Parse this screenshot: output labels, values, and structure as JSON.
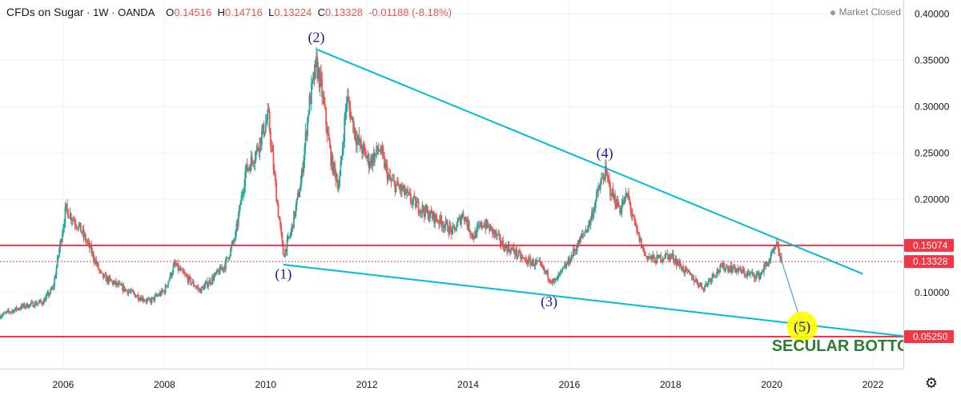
{
  "header": {
    "symbol": "CFDs on Sugar",
    "interval": "1W",
    "exchange": "OANDA",
    "open_label": "O",
    "open": "0.14516",
    "high_label": "H",
    "high": "0.14716",
    "low_label": "L",
    "low": "0.13224",
    "close_label": "C",
    "close": "0.13328",
    "change": "-0.01188 (-8.18%)"
  },
  "market_status": "Market Closed",
  "settings_icon": "gear-icon",
  "colors": {
    "up": "#26a69a",
    "down": "#ef5350",
    "trendline": "#00bcd4",
    "level": "#f23645",
    "wave_label": "#1a1a8c",
    "secular_text": "#2e7d32",
    "highlight": "#ffff00",
    "axis_text": "#131722"
  },
  "chart_data": {
    "type": "candlestick",
    "title": "CFDs on Sugar · 1W · OANDA",
    "x_ticks": [
      "2006",
      "2008",
      "2010",
      "2012",
      "2014",
      "2016",
      "2018",
      "2020",
      "2022"
    ],
    "x_tick_values": [
      2006,
      2008,
      2010,
      2012,
      2014,
      2016,
      2018,
      2020,
      2022
    ],
    "xlim": [
      2004.75,
      2022.6
    ],
    "y_ticks": [
      "0.40000",
      "0.35000",
      "0.30000",
      "0.25000",
      "0.20000",
      "0.15000",
      "0.10000"
    ],
    "y_tick_values": [
      0.4,
      0.35,
      0.3,
      0.25,
      0.2,
      0.15,
      0.1
    ],
    "ylim": [
      0.018,
      0.415
    ],
    "price_path": [
      [
        2004.75,
        0.075
      ],
      [
        2005.2,
        0.085
      ],
      [
        2005.6,
        0.09
      ],
      [
        2005.8,
        0.105
      ],
      [
        2006.05,
        0.19
      ],
      [
        2006.3,
        0.172
      ],
      [
        2006.55,
        0.145
      ],
      [
        2006.75,
        0.118
      ],
      [
        2007.0,
        0.11
      ],
      [
        2007.4,
        0.098
      ],
      [
        2007.7,
        0.09
      ],
      [
        2008.0,
        0.102
      ],
      [
        2008.2,
        0.13
      ],
      [
        2008.4,
        0.118
      ],
      [
        2008.7,
        0.102
      ],
      [
        2008.95,
        0.115
      ],
      [
        2009.2,
        0.13
      ],
      [
        2009.4,
        0.16
      ],
      [
        2009.6,
        0.23
      ],
      [
        2009.8,
        0.25
      ],
      [
        2010.05,
        0.29
      ],
      [
        2010.2,
        0.21
      ],
      [
        2010.35,
        0.14
      ],
      [
        2010.5,
        0.165
      ],
      [
        2010.7,
        0.22
      ],
      [
        2010.85,
        0.3
      ],
      [
        2011.0,
        0.345
      ],
      [
        2011.1,
        0.32
      ],
      [
        2011.3,
        0.24
      ],
      [
        2011.45,
        0.215
      ],
      [
        2011.6,
        0.31
      ],
      [
        2011.8,
        0.265
      ],
      [
        2012.05,
        0.24
      ],
      [
        2012.25,
        0.255
      ],
      [
        2012.45,
        0.22
      ],
      [
        2012.7,
        0.21
      ],
      [
        2012.9,
        0.198
      ],
      [
        2013.2,
        0.185
      ],
      [
        2013.5,
        0.175
      ],
      [
        2013.7,
        0.165
      ],
      [
        2013.9,
        0.185
      ],
      [
        2014.1,
        0.16
      ],
      [
        2014.3,
        0.175
      ],
      [
        2014.5,
        0.165
      ],
      [
        2014.7,
        0.15
      ],
      [
        2014.9,
        0.145
      ],
      [
        2015.1,
        0.135
      ],
      [
        2015.4,
        0.13
      ],
      [
        2015.7,
        0.11
      ],
      [
        2015.95,
        0.13
      ],
      [
        2016.2,
        0.155
      ],
      [
        2016.4,
        0.175
      ],
      [
        2016.55,
        0.205
      ],
      [
        2016.7,
        0.23
      ],
      [
        2016.85,
        0.205
      ],
      [
        2017.0,
        0.19
      ],
      [
        2017.15,
        0.205
      ],
      [
        2017.3,
        0.17
      ],
      [
        2017.5,
        0.14
      ],
      [
        2017.7,
        0.135
      ],
      [
        2017.9,
        0.14
      ],
      [
        2018.05,
        0.138
      ],
      [
        2018.25,
        0.125
      ],
      [
        2018.45,
        0.115
      ],
      [
        2018.65,
        0.105
      ],
      [
        2018.85,
        0.12
      ],
      [
        2019.05,
        0.128
      ],
      [
        2019.3,
        0.125
      ],
      [
        2019.5,
        0.12
      ],
      [
        2019.75,
        0.118
      ],
      [
        2019.95,
        0.135
      ],
      [
        2020.1,
        0.15
      ],
      [
        2020.2,
        0.133
      ]
    ],
    "current_price": 0.13328,
    "annotations": {
      "waves": [
        {
          "label": "(1)",
          "x": 2010.35,
          "y": 0.115
        },
        {
          "label": "(2)",
          "x": 2011.0,
          "y": 0.37
        },
        {
          "label": "(3)",
          "x": 2015.6,
          "y": 0.085
        },
        {
          "label": "(4)",
          "x": 2016.7,
          "y": 0.245
        },
        {
          "label": "(5)",
          "x": 2020.6,
          "y": 0.058
        }
      ],
      "secular_text": "SECULAR BOTTOM",
      "secular_x": 2020.0,
      "secular_y": 0.037,
      "upper_trendline": [
        [
          2011.0,
          0.362
        ],
        [
          2021.8,
          0.12
        ]
      ],
      "lower_trendline": [
        [
          2010.35,
          0.13
        ],
        [
          2022.6,
          0.053
        ]
      ],
      "projection": [
        [
          2020.2,
          0.133
        ],
        [
          2020.7,
          0.047
        ]
      ],
      "h_lines": [
        {
          "value": 0.15074,
          "label": "0.15074",
          "style": "solid"
        },
        {
          "value": 0.13328,
          "label": "0.13328",
          "style": "dotted"
        },
        {
          "value": 0.0525,
          "label": "0.05250",
          "style": "solid"
        }
      ]
    },
    "xlabel": "",
    "ylabel": "",
    "grid": true,
    "legend": "none"
  }
}
